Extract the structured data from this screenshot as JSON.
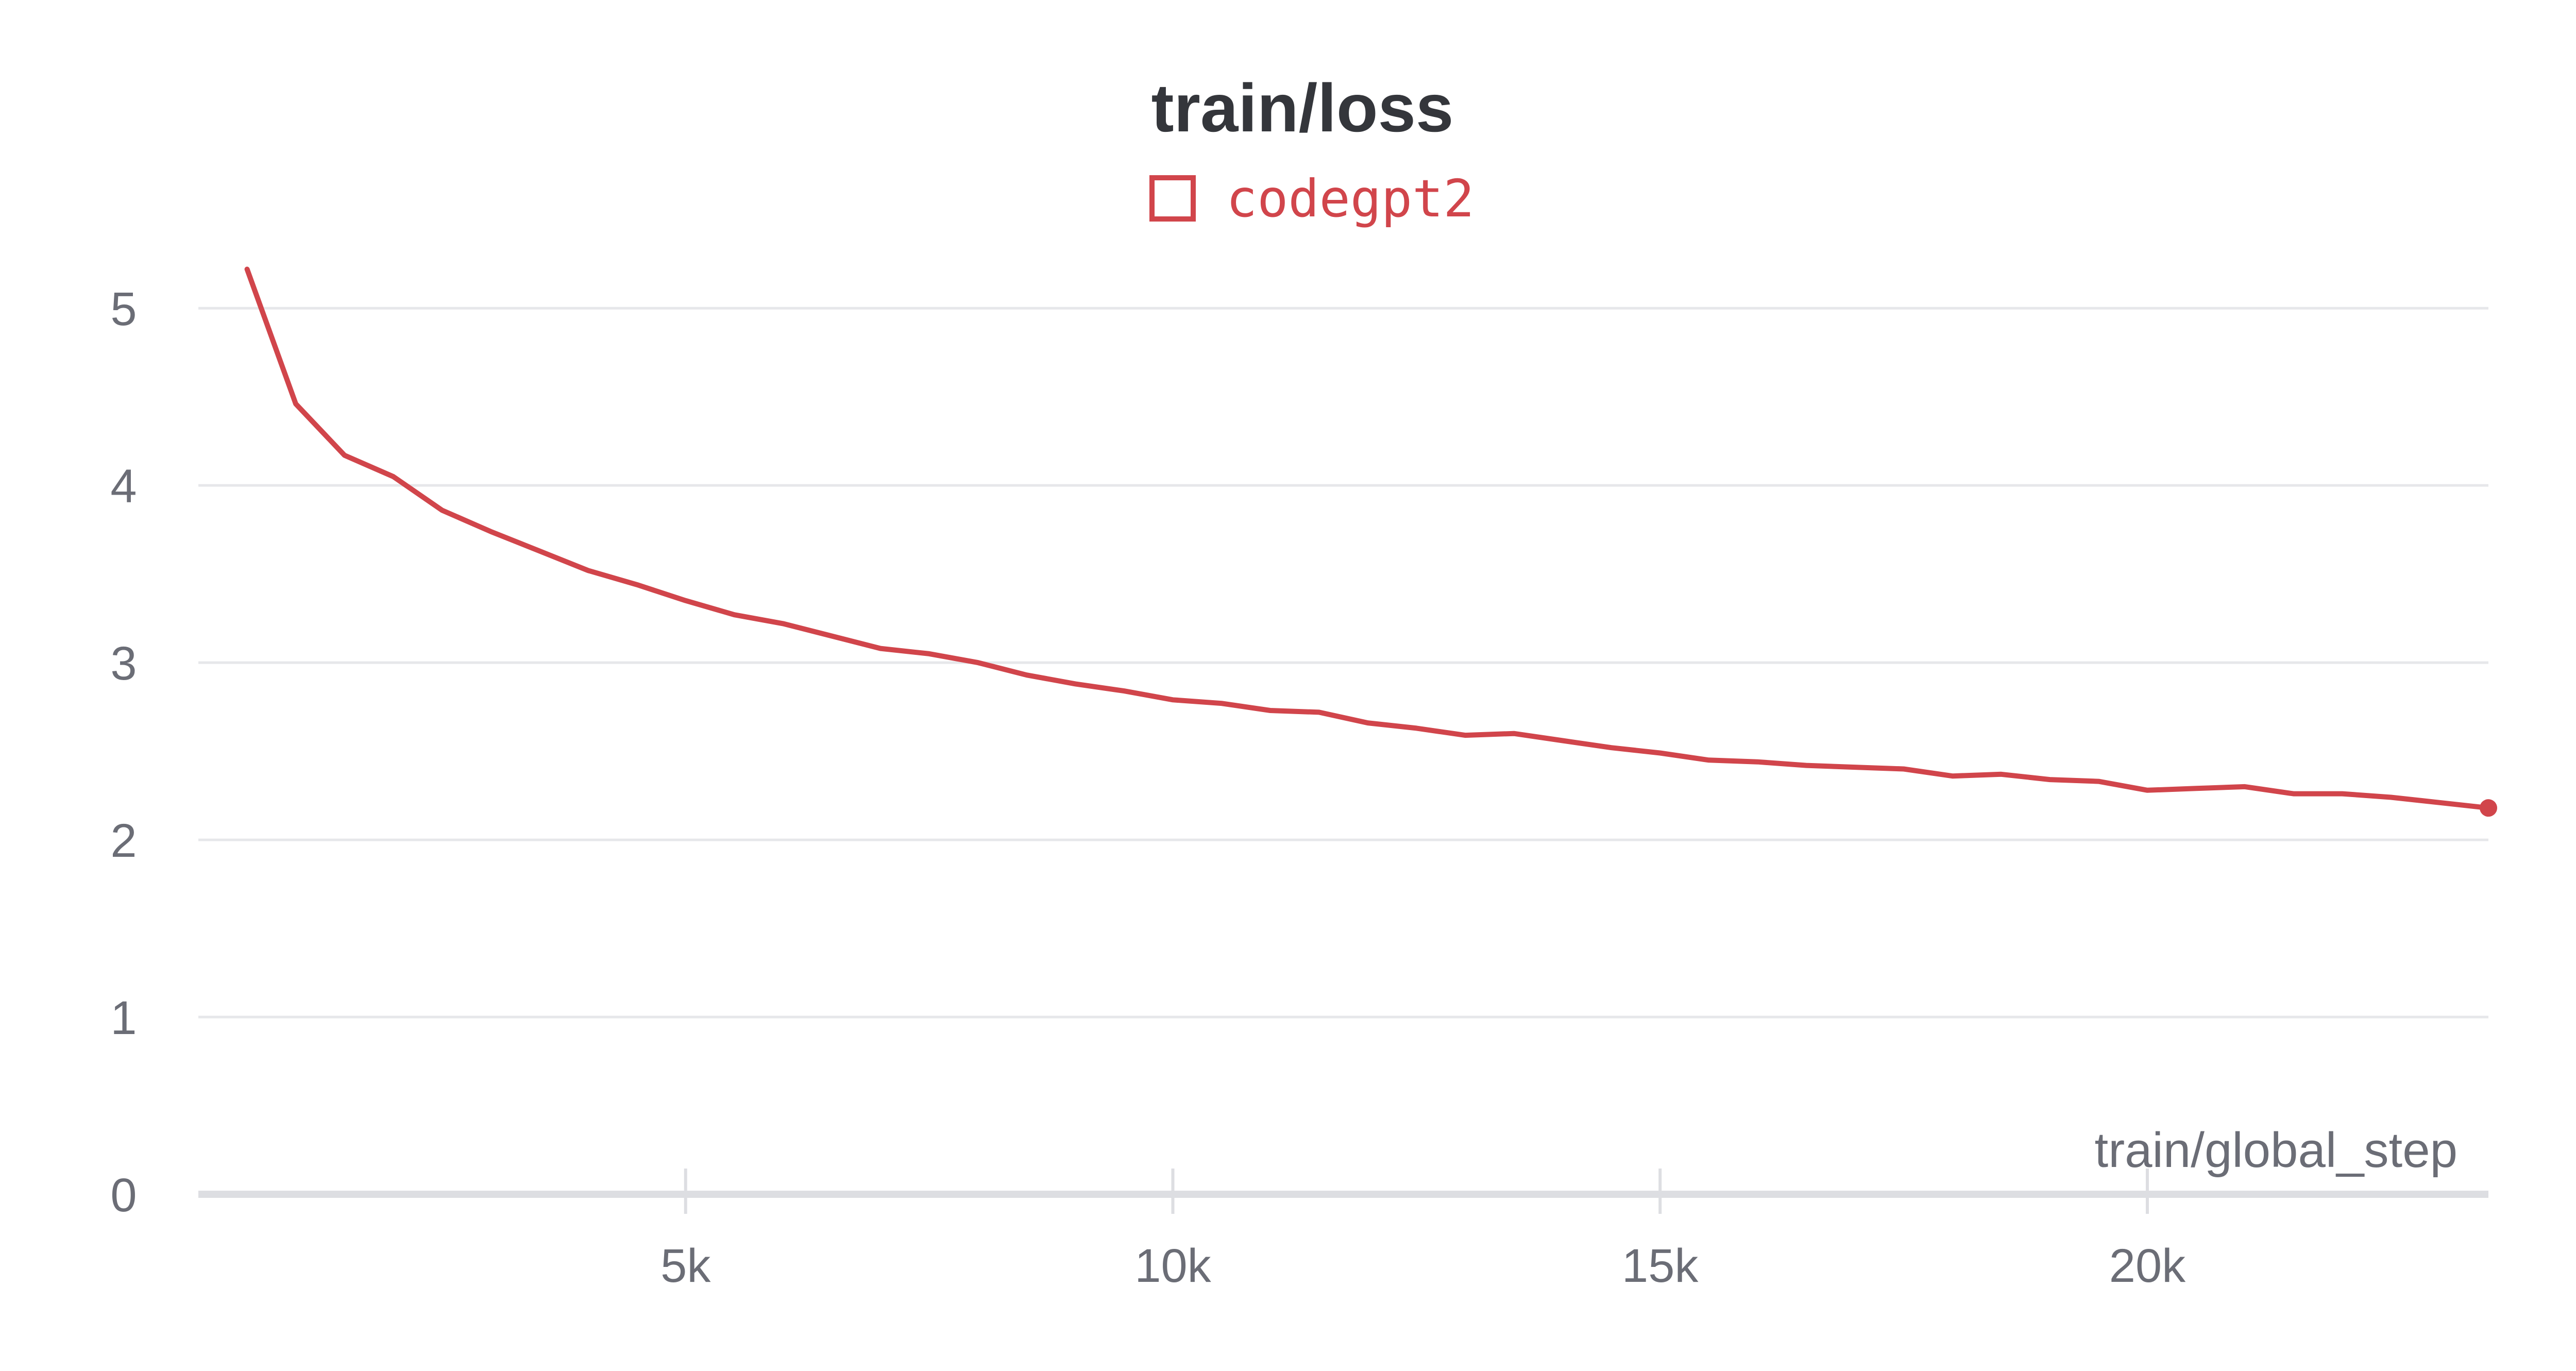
{
  "chart_data": {
    "type": "line",
    "title": "train/loss",
    "xlabel": "train/global_step",
    "ylabel": "",
    "xlim": [
      500,
      23500
    ],
    "ylim": [
      0,
      5.3
    ],
    "x_ticks": [
      {
        "value": 5000,
        "label": "5k"
      },
      {
        "value": 10000,
        "label": "10k"
      },
      {
        "value": 15000,
        "label": "15k"
      },
      {
        "value": 20000,
        "label": "20k"
      }
    ],
    "y_ticks": [
      {
        "value": 0,
        "label": "0"
      },
      {
        "value": 1,
        "label": "1"
      },
      {
        "value": 2,
        "label": "2"
      },
      {
        "value": 3,
        "label": "3"
      },
      {
        "value": 4,
        "label": "4"
      },
      {
        "value": 5,
        "label": "5"
      }
    ],
    "grid": true,
    "legend_position": "top-center",
    "series": [
      {
        "name": "codegpt2",
        "color": "#d1454b",
        "x": [
          500,
          1000,
          1500,
          2000,
          2500,
          3000,
          3500,
          4000,
          4500,
          5000,
          5500,
          6000,
          6500,
          7000,
          7500,
          8000,
          8500,
          9000,
          9500,
          10000,
          10500,
          11000,
          11500,
          12000,
          12500,
          13000,
          13500,
          14000,
          14500,
          15000,
          15500,
          16000,
          16500,
          17000,
          17500,
          18000,
          18500,
          19000,
          19500,
          20000,
          20500,
          21000,
          21500,
          22000,
          22500,
          23000,
          23500
        ],
        "y": [
          5.22,
          4.46,
          4.17,
          4.05,
          3.86,
          3.74,
          3.63,
          3.52,
          3.44,
          3.35,
          3.27,
          3.22,
          3.15,
          3.08,
          3.05,
          3.0,
          2.93,
          2.88,
          2.84,
          2.79,
          2.77,
          2.73,
          2.72,
          2.66,
          2.63,
          2.59,
          2.6,
          2.56,
          2.52,
          2.49,
          2.45,
          2.44,
          2.42,
          2.41,
          2.4,
          2.36,
          2.37,
          2.34,
          2.33,
          2.28,
          2.29,
          2.3,
          2.26,
          2.26,
          2.24,
          2.21,
          2.18
        ]
      }
    ]
  }
}
